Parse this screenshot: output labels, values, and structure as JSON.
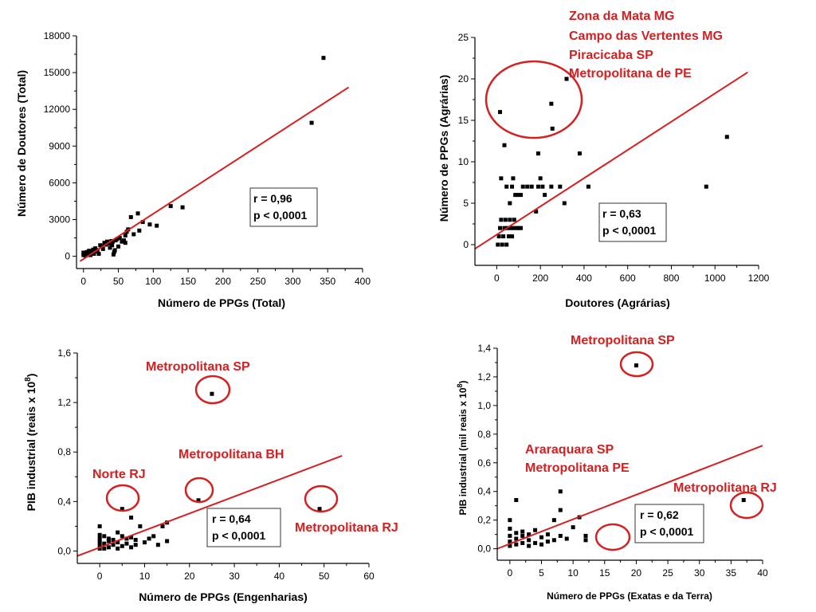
{
  "colors": {
    "accent": "#d42020",
    "marker": "#000000"
  },
  "chart_data": [
    {
      "type": "scatter",
      "xlabel": "Número de PPGs (Total)",
      "ylabel": "Número de Doutores (Total)",
      "xlim": [
        -10,
        400
      ],
      "ylim": [
        -1000,
        18000
      ],
      "xticks": [
        0,
        50,
        100,
        150,
        200,
        250,
        300,
        350,
        400
      ],
      "yticks": [
        0,
        3000,
        6000,
        9000,
        12000,
        15000,
        18000
      ],
      "xtick_labels": [
        "0",
        "50",
        "100",
        "150",
        "200",
        "250",
        "300",
        "350",
        "400"
      ],
      "ytick_labels": [
        "0",
        "3000",
        "6000",
        "9000",
        "12000",
        "15000",
        "18000"
      ],
      "points": [
        [
          0,
          100
        ],
        [
          0,
          300
        ],
        [
          2,
          200
        ],
        [
          3,
          50
        ],
        [
          5,
          150
        ],
        [
          5,
          350
        ],
        [
          7,
          250
        ],
        [
          8,
          450
        ],
        [
          10,
          100
        ],
        [
          10,
          400
        ],
        [
          12,
          300
        ],
        [
          14,
          550
        ],
        [
          15,
          200
        ],
        [
          17,
          650
        ],
        [
          18,
          380
        ],
        [
          20,
          500
        ],
        [
          22,
          200
        ],
        [
          24,
          900
        ],
        [
          26,
          800
        ],
        [
          28,
          600
        ],
        [
          30,
          1100
        ],
        [
          32,
          950
        ],
        [
          34,
          1200
        ],
        [
          36,
          1050
        ],
        [
          38,
          700
        ],
        [
          40,
          1250
        ],
        [
          41,
          900
        ],
        [
          42,
          1200
        ],
        [
          43,
          150
        ],
        [
          44,
          350
        ],
        [
          45,
          500
        ],
        [
          46,
          1300
        ],
        [
          48,
          1400
        ],
        [
          50,
          800
        ],
        [
          52,
          1500
        ],
        [
          55,
          1200
        ],
        [
          58,
          1300
        ],
        [
          60,
          1700
        ],
        [
          60,
          1100
        ],
        [
          62,
          2000
        ],
        [
          64,
          2200
        ],
        [
          68,
          3200
        ],
        [
          72,
          1800
        ],
        [
          78,
          3500
        ],
        [
          80,
          2100
        ],
        [
          85,
          2800
        ],
        [
          95,
          2600
        ],
        [
          105,
          2500
        ],
        [
          125,
          4100
        ],
        [
          142,
          4000
        ],
        [
          327,
          10900
        ],
        [
          344,
          16200
        ]
      ],
      "fit_line": [
        [
          -5,
          -400
        ],
        [
          380,
          13800
        ]
      ],
      "stats": {
        "r": "r = 0,96",
        "p": "p < 0,0001"
      }
    },
    {
      "type": "scatter",
      "xlabel": "Doutores (Agrárias)",
      "ylabel": "Número de PPGs (Agrárias)",
      "xlim": [
        -100,
        1200
      ],
      "ylim": [
        -2.5,
        25
      ],
      "xticks": [
        0,
        200,
        400,
        600,
        800,
        1000,
        1200
      ],
      "yticks": [
        0,
        5,
        10,
        15,
        20,
        25
      ],
      "xtick_labels": [
        "0",
        "200",
        "400",
        "600",
        "800",
        "1000",
        "1200"
      ],
      "ytick_labels": [
        "0",
        "5",
        "10",
        "15",
        "20",
        "25"
      ],
      "points": [
        [
          5,
          0
        ],
        [
          10,
          1
        ],
        [
          15,
          2
        ],
        [
          20,
          3
        ],
        [
          25,
          0
        ],
        [
          30,
          1
        ],
        [
          35,
          2
        ],
        [
          40,
          3
        ],
        [
          45,
          0
        ],
        [
          50,
          2
        ],
        [
          55,
          1
        ],
        [
          60,
          3
        ],
        [
          65,
          2
        ],
        [
          70,
          1
        ],
        [
          75,
          2
        ],
        [
          80,
          3
        ],
        [
          90,
          2
        ],
        [
          100,
          2
        ],
        [
          110,
          2
        ],
        [
          20,
          8
        ],
        [
          35,
          12
        ],
        [
          45,
          7
        ],
        [
          60,
          5
        ],
        [
          70,
          7
        ],
        [
          75,
          8
        ],
        [
          85,
          6
        ],
        [
          95,
          6
        ],
        [
          110,
          6
        ],
        [
          120,
          7
        ],
        [
          140,
          7
        ],
        [
          160,
          7
        ],
        [
          180,
          4
        ],
        [
          190,
          7
        ],
        [
          200,
          8
        ],
        [
          210,
          7
        ],
        [
          220,
          6
        ],
        [
          250,
          7
        ],
        [
          290,
          7
        ],
        [
          310,
          5
        ],
        [
          190,
          11
        ],
        [
          380,
          11
        ],
        [
          420,
          7
        ],
        [
          960,
          7
        ],
        [
          1055,
          13
        ],
        [
          15,
          16
        ],
        [
          250,
          17
        ],
        [
          255,
          14
        ],
        [
          320,
          20
        ]
      ],
      "fit_line": [
        [
          -100,
          -0.5
        ],
        [
          1150,
          20.8
        ]
      ],
      "stats": {
        "r": "r = 0,63",
        "p": "p < 0,0001"
      },
      "annotations": [
        {
          "text": "Zona da Mata MG"
        },
        {
          "text": "Campo das Vertentes MG"
        },
        {
          "text": "Piracicaba SP"
        },
        {
          "text": "Metropolitana de PE"
        }
      ]
    },
    {
      "type": "scatter",
      "xlabel": "Número de PPGs (Engenharias)",
      "ylabel_main": "PIB industrial (reais x 10",
      "ylabel_sup": "8",
      "ylabel_end": ")",
      "xlim": [
        -5,
        60
      ],
      "ylim": [
        -0.1,
        1.6
      ],
      "xticks": [
        0,
        10,
        20,
        30,
        40,
        50,
        60
      ],
      "yticks": [
        0,
        0.4,
        0.8,
        1.2,
        1.6
      ],
      "xtick_labels": [
        "0",
        "10",
        "20",
        "30",
        "40",
        "50",
        "60"
      ],
      "ytick_labels": [
        "0,0",
        "0,4",
        "0,8",
        "1,2",
        "1,6"
      ],
      "points": [
        [
          0,
          0.02
        ],
        [
          0,
          0.05
        ],
        [
          0,
          0.08
        ],
        [
          0,
          0.1
        ],
        [
          0,
          0.13
        ],
        [
          0,
          0.2
        ],
        [
          1,
          0.02
        ],
        [
          1,
          0.06
        ],
        [
          1,
          0.12
        ],
        [
          2,
          0.03
        ],
        [
          2,
          0.08
        ],
        [
          2,
          0.1
        ],
        [
          3,
          0.05
        ],
        [
          3,
          0.09
        ],
        [
          4,
          0.02
        ],
        [
          4,
          0.07
        ],
        [
          4,
          0.15
        ],
        [
          5,
          0.04
        ],
        [
          5,
          0.12
        ],
        [
          6,
          0.06
        ],
        [
          6,
          0.1
        ],
        [
          7,
          0.03
        ],
        [
          7,
          0.11
        ],
        [
          7,
          0.27
        ],
        [
          8,
          0.05
        ],
        [
          8,
          0.09
        ],
        [
          9,
          0.2
        ],
        [
          10,
          0.07
        ],
        [
          11,
          0.1
        ],
        [
          12,
          0.12
        ],
        [
          13,
          0.05
        ],
        [
          14,
          0.2
        ],
        [
          15,
          0.08
        ],
        [
          15,
          0.23
        ],
        [
          5,
          0.34
        ],
        [
          22,
          0.41
        ],
        [
          25,
          1.27
        ],
        [
          49,
          0.34
        ]
      ],
      "fit_line": [
        [
          -5,
          -0.04
        ],
        [
          54,
          0.77
        ]
      ],
      "stats": {
        "r": "r = 0,64",
        "p": "p < 0,0001"
      },
      "annotations": [
        {
          "text": "Metropolitana SP"
        },
        {
          "text": "Metropolitana BH"
        },
        {
          "text": "Norte RJ"
        },
        {
          "text": "Metropolitana RJ"
        }
      ]
    },
    {
      "type": "scatter",
      "xlabel": "Número de PPGs (Exatas e da Terra)",
      "ylabel_main": "PIB industrial (mil reais x 10",
      "ylabel_sup": "8",
      "ylabel_end": ")",
      "xlim": [
        -2,
        40
      ],
      "ylim": [
        -0.08,
        1.4
      ],
      "xticks": [
        0,
        5,
        10,
        15,
        20,
        25,
        30,
        35,
        40
      ],
      "yticks": [
        0,
        0.2,
        0.4,
        0.6,
        0.8,
        1.0,
        1.2,
        1.4
      ],
      "xtick_labels": [
        "0",
        "5",
        "10",
        "15",
        "20",
        "25",
        "30",
        "35",
        "40"
      ],
      "ytick_labels": [
        "0,0",
        "0,2",
        "0,4",
        "0,6",
        "0,8",
        "1,0",
        "1,2",
        "1,4"
      ],
      "points": [
        [
          0,
          0.02
        ],
        [
          0,
          0.05
        ],
        [
          0,
          0.09
        ],
        [
          0,
          0.14
        ],
        [
          0,
          0.2
        ],
        [
          1,
          0.03
        ],
        [
          1,
          0.07
        ],
        [
          1,
          0.11
        ],
        [
          1,
          0.34
        ],
        [
          2,
          0.04
        ],
        [
          2,
          0.09
        ],
        [
          2,
          0.12
        ],
        [
          3,
          0.02
        ],
        [
          3,
          0.06
        ],
        [
          3,
          0.1
        ],
        [
          4,
          0.04
        ],
        [
          4,
          0.13
        ],
        [
          5,
          0.03
        ],
        [
          5,
          0.08
        ],
        [
          6,
          0.05
        ],
        [
          6,
          0.1
        ],
        [
          7,
          0.06
        ],
        [
          7,
          0.2
        ],
        [
          8,
          0.09
        ],
        [
          8,
          0.27
        ],
        [
          8,
          0.4
        ],
        [
          9,
          0.07
        ],
        [
          10,
          0.15
        ],
        [
          11,
          0.22
        ],
        [
          12,
          0.06
        ],
        [
          12,
          0.09
        ],
        [
          20,
          1.28
        ],
        [
          37,
          0.34
        ]
      ],
      "fit_line": [
        [
          -2,
          0.0
        ],
        [
          40,
          0.72
        ]
      ],
      "stats": {
        "r": "r = 0,62",
        "p": "p < 0,0001"
      },
      "annotations": [
        {
          "text": "Metropolitana SP"
        },
        {
          "text": "Araraquara SP"
        },
        {
          "text": "Metropolitana PE"
        },
        {
          "text": "Metropolitana RJ"
        }
      ]
    }
  ]
}
